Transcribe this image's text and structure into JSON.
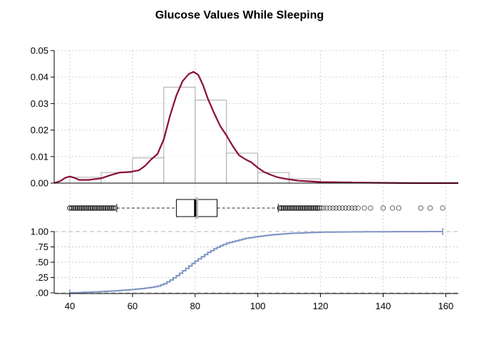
{
  "chart_data": [
    {
      "panel": "histogram-density",
      "type": "bar",
      "title": "Glucose Values While Sleeping",
      "xlim": [
        35,
        164
      ],
      "ylim": [
        0,
        0.05
      ],
      "yticks": [
        0,
        0.01,
        0.02,
        0.03,
        0.04,
        0.05
      ],
      "ytick_labels": [
        "0.00",
        "0.01",
        "0.02",
        "0.03",
        "0.04",
        "0.05"
      ],
      "bins": [
        {
          "x0": 40,
          "x1": 50,
          "value": 0.0022
        },
        {
          "x0": 50,
          "x1": 60,
          "value": 0.004
        },
        {
          "x0": 60,
          "x1": 70,
          "value": 0.0095
        },
        {
          "x0": 70,
          "x1": 80,
          "value": 0.0362
        },
        {
          "x0": 80,
          "x1": 90,
          "value": 0.0313
        },
        {
          "x0": 90,
          "x1": 100,
          "value": 0.0113
        },
        {
          "x0": 100,
          "x1": 110,
          "value": 0.004
        },
        {
          "x0": 110,
          "x1": 120,
          "value": 0.0016
        },
        {
          "x0": 120,
          "x1": 130,
          "value": 0.0005
        },
        {
          "x0": 130,
          "x1": 140,
          "value": 0.0002
        }
      ],
      "density": {
        "x": [
          35,
          37,
          38.5,
          40,
          41.5,
          43,
          46,
          50,
          53,
          56,
          59,
          62,
          64,
          66,
          68,
          70,
          72,
          74,
          76,
          78,
          79.5,
          81,
          82.5,
          84,
          86,
          88,
          90,
          92,
          94,
          96,
          98,
          100,
          102,
          104,
          106,
          108,
          110,
          113,
          116,
          120,
          125,
          130,
          140,
          150,
          164
        ],
        "y": [
          0.0,
          0.0008,
          0.002,
          0.0025,
          0.002,
          0.0012,
          0.0012,
          0.0018,
          0.003,
          0.004,
          0.0042,
          0.0048,
          0.0065,
          0.009,
          0.011,
          0.0165,
          0.0255,
          0.033,
          0.0385,
          0.0412,
          0.042,
          0.0408,
          0.037,
          0.032,
          0.0265,
          0.0215,
          0.018,
          0.014,
          0.0105,
          0.009,
          0.0078,
          0.0058,
          0.0042,
          0.0032,
          0.0023,
          0.0018,
          0.0014,
          0.0009,
          0.0007,
          0.0004,
          0.0003,
          0.0002,
          0.0001,
          0.0,
          0.0
        ],
        "color": "#8a0a3a"
      },
      "bar_outline_color": "#aaaaaa"
    },
    {
      "panel": "boxplot",
      "type": "boxplot",
      "q1": 74,
      "median": 80,
      "q3": 87,
      "mean": 80.5,
      "whisker_low": 55,
      "whisker_high": 106.5,
      "outliers": [
        40,
        40.6,
        41.2,
        41.8,
        42.4,
        43,
        43.6,
        44.2,
        44.8,
        45.4,
        46,
        46.6,
        47.2,
        47.8,
        48.4,
        49,
        49.6,
        50.2,
        50.8,
        51.4,
        52,
        52.6,
        53.2,
        53.8,
        54.4,
        107,
        107.6,
        108.2,
        108.8,
        109.4,
        110,
        110.6,
        111.2,
        111.8,
        112.4,
        113,
        113.6,
        114.2,
        114.8,
        115.4,
        116,
        116.6,
        117.2,
        117.8,
        118.4,
        119,
        119.6,
        120.2,
        121,
        122,
        123,
        124,
        125,
        126,
        127,
        128,
        129,
        130,
        131,
        132,
        134,
        136,
        140,
        143,
        145,
        152,
        155,
        159
      ],
      "notch_color": "#bbbbbb"
    },
    {
      "panel": "ecdf",
      "type": "line",
      "xlim": [
        35,
        164
      ],
      "ylim": [
        0,
        1
      ],
      "yticks": [
        0,
        0.25,
        0.5,
        0.75,
        1.0
      ],
      "ytick_labels": [
        ".00",
        ".25",
        ".50",
        ".75",
        "1.00"
      ],
      "xticks": [
        40,
        60,
        80,
        100,
        120,
        140,
        160
      ],
      "xtick_labels": [
        "40",
        "60",
        "80",
        "100",
        "120",
        "140",
        "160"
      ],
      "x": [
        40,
        45,
        50,
        55,
        60,
        63,
        66,
        68,
        70,
        72,
        74,
        76,
        78,
        80,
        82,
        84,
        86,
        88,
        90,
        93,
        96,
        100,
        105,
        110,
        115,
        120,
        130,
        140,
        150,
        159
      ],
      "y": [
        0.0,
        0.01,
        0.02,
        0.035,
        0.055,
        0.07,
        0.09,
        0.11,
        0.15,
        0.21,
        0.28,
        0.36,
        0.44,
        0.52,
        0.59,
        0.66,
        0.72,
        0.77,
        0.81,
        0.85,
        0.89,
        0.92,
        0.95,
        0.97,
        0.98,
        0.99,
        0.995,
        0.998,
        0.999,
        1.0
      ],
      "color": "#7f93c4"
    }
  ]
}
